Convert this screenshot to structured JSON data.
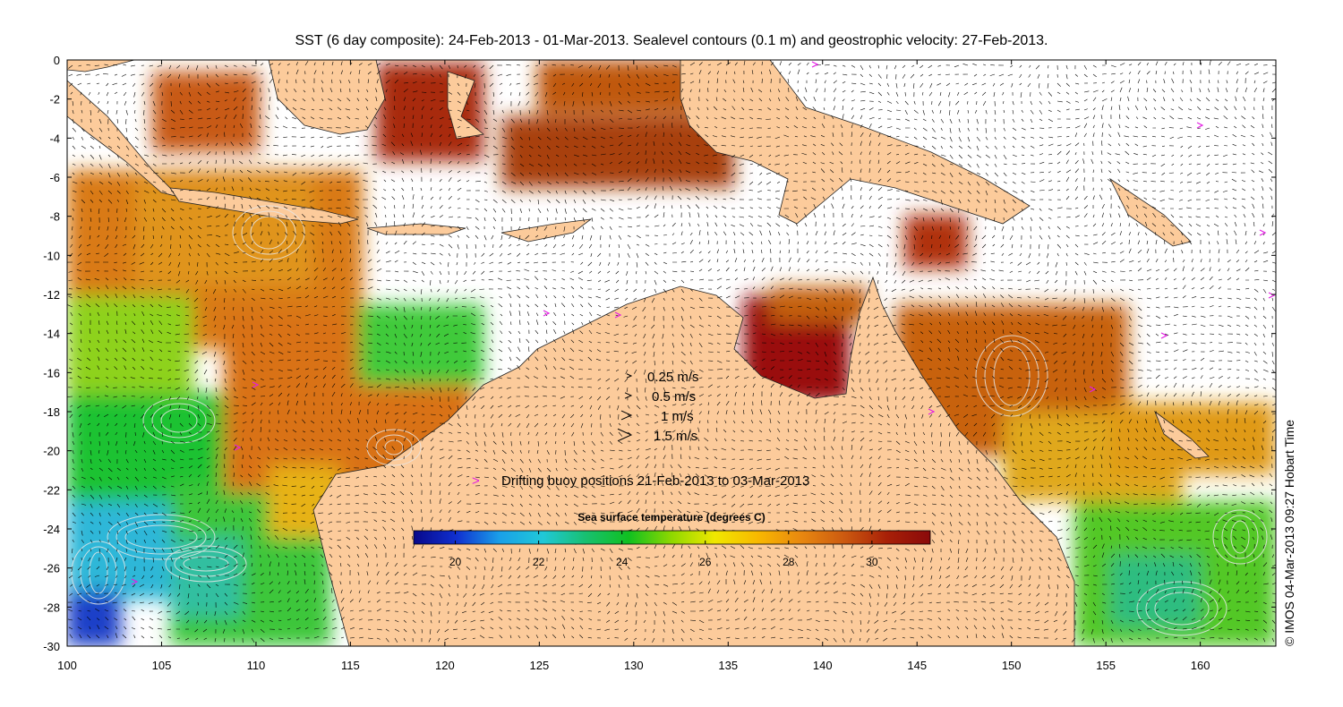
{
  "title": "SST (6 day composite): 24-Feb-2013 - 01-Mar-2013. Sealevel contours (0.1 m) and geostrophic velocity: 27-Feb-2013.",
  "credit": "© IMOS 04-Mar-2013 09:27 Hobart Time",
  "colors": {
    "land": "#fccb9b",
    "missing": "#ffffff",
    "buoy": "#e21ee2",
    "arrow": "#000000",
    "contour": "#e6e6e6"
  },
  "map": {
    "lon_range": [
      100,
      164
    ],
    "lat_range": [
      -30,
      0
    ],
    "x_ticks": [
      100,
      105,
      110,
      115,
      120,
      125,
      130,
      135,
      140,
      145,
      150,
      155,
      160
    ],
    "y_ticks": [
      0,
      -2,
      -4,
      -6,
      -8,
      -10,
      -12,
      -14,
      -16,
      -18,
      -20,
      -22,
      -24,
      -26,
      -28,
      -30
    ]
  },
  "velocity_legend": [
    {
      "label": "0.25 m/s",
      "speed": 0.25
    },
    {
      "label": "0.5 m/s",
      "speed": 0.5
    },
    {
      "label": "1 m/s",
      "speed": 1
    },
    {
      "label": "1.5 m/s",
      "speed": 1.5
    }
  ],
  "buoy_legend": {
    "symbol": ">",
    "label": "Drifting buoy positions 21-Feb-2013 to 03-Mar-2013"
  },
  "colorbar": {
    "title": "Sea surface temperature (degrees C)",
    "range": [
      19,
      31.4
    ],
    "ticks": [
      20,
      22,
      24,
      26,
      28,
      30
    ],
    "stops": [
      "#08088a",
      "#1030d0",
      "#1aa0e8",
      "#20c8d8",
      "#18c070",
      "#10c020",
      "#90d800",
      "#f0e800",
      "#f8b800",
      "#e88810",
      "#cc5a10",
      "#a82008",
      "#8a0a0a"
    ]
  }
}
